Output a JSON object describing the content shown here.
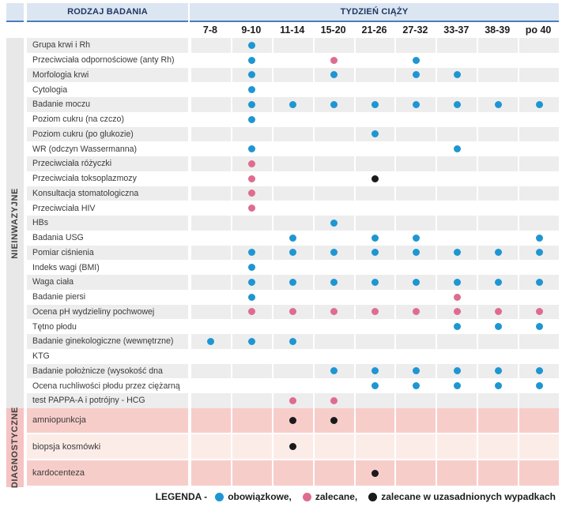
{
  "header": {
    "exam_col": "RODZAJ BADANIA",
    "weeks_col": "TYDZIEŃ CIĄŻY"
  },
  "chart_data": {
    "type": "table",
    "columns": [
      "7-8",
      "9-10",
      "11-14",
      "15-20",
      "21-26",
      "27-32",
      "33-37",
      "38-39",
      "po 40"
    ],
    "dot_types": {
      "blue": "obowiązkowe",
      "pink": "zalecane",
      "black": "zalecane w uzasadnionych wypadkach"
    },
    "sections": [
      {
        "label": "NIEINWAZYJNE",
        "style": "gray",
        "rows": [
          {
            "name": "Grupa krwi i Rh",
            "dots": {
              "1": "blue"
            }
          },
          {
            "name": "Przeciwciała odpornościowe (anty Rh)",
            "dots": {
              "1": "blue",
              "3": "pink",
              "5": "blue"
            }
          },
          {
            "name": "Morfologia krwi",
            "dots": {
              "1": "blue",
              "3": "blue",
              "5": "blue",
              "6": "blue"
            }
          },
          {
            "name": "Cytologia",
            "dots": {
              "1": "blue"
            }
          },
          {
            "name": "Badanie moczu",
            "dots": {
              "1": "blue",
              "2": "blue",
              "3": "blue",
              "4": "blue",
              "5": "blue",
              "6": "blue",
              "7": "blue",
              "8": "blue"
            }
          },
          {
            "name": "Poziom cukru (na czczo)",
            "dots": {
              "1": "blue"
            }
          },
          {
            "name": "Poziom cukru (po glukozie)",
            "dots": {
              "4": "blue"
            }
          },
          {
            "name": "WR (odczyn Wassermanna)",
            "dots": {
              "1": "blue",
              "6": "blue"
            }
          },
          {
            "name": "Przeciwciała różyczki",
            "dots": {
              "1": "pink"
            }
          },
          {
            "name": "Przeciwciała toksoplazmozy",
            "dots": {
              "1": "pink",
              "4": "black"
            }
          },
          {
            "name": "Konsultacja stomatologiczna",
            "dots": {
              "1": "pink"
            }
          },
          {
            "name": "Przeciwciała HIV",
            "dots": {
              "1": "pink"
            }
          },
          {
            "name": "HBs",
            "dots": {
              "3": "blue"
            }
          },
          {
            "name": "Badania USG",
            "dots": {
              "2": "blue",
              "4": "blue",
              "5": "blue",
              "8": "blue"
            }
          },
          {
            "name": "Pomiar ciśnienia",
            "dots": {
              "1": "blue",
              "2": "blue",
              "3": "blue",
              "4": "blue",
              "5": "blue",
              "6": "blue",
              "7": "blue",
              "8": "blue"
            }
          },
          {
            "name": "Indeks wagi (BMI)",
            "dots": {
              "1": "blue"
            }
          },
          {
            "name": "Waga ciała",
            "dots": {
              "1": "blue",
              "2": "blue",
              "3": "blue",
              "4": "blue",
              "5": "blue",
              "6": "blue",
              "7": "blue",
              "8": "blue"
            }
          },
          {
            "name": "Badanie piersi",
            "dots": {
              "1": "blue",
              "6": "pink"
            }
          },
          {
            "name": "Ocena pH wydzieliny pochwowej",
            "dots": {
              "1": "pink",
              "2": "pink",
              "3": "pink",
              "4": "pink",
              "5": "pink",
              "6": "pink",
              "7": "pink",
              "8": "pink"
            }
          },
          {
            "name": "Tętno płodu",
            "dots": {
              "6": "blue",
              "7": "blue",
              "8": "blue"
            }
          },
          {
            "name": "Badanie ginekologiczne (wewnętrzne)",
            "dots": {
              "0": "blue",
              "1": "blue",
              "2": "blue"
            }
          },
          {
            "name": "KTG",
            "dots": {}
          },
          {
            "name": "Badanie położnicze (wysokość dna",
            "dots": {
              "3": "blue",
              "4": "blue",
              "5": "blue",
              "6": "blue",
              "7": "blue",
              "8": "blue"
            }
          },
          {
            "name": "Ocena ruchliwości płodu przez ciężarną",
            "dots": {
              "4": "blue",
              "5": "blue",
              "6": "blue",
              "7": "blue",
              "8": "blue"
            }
          },
          {
            "name": "test PAPPA-A i potrójny - HCG",
            "dots": {
              "2": "pink",
              "3": "pink"
            }
          }
        ]
      },
      {
        "label": "DIAGNOSTYCZNE",
        "style": "pink",
        "rows": [
          {
            "name": "amniopunkcja",
            "dots": {
              "2": "black",
              "3": "black"
            }
          },
          {
            "name": "biopsja kosmówki",
            "dots": {
              "2": "black"
            }
          },
          {
            "name": "kardocenteza",
            "dots": {
              "4": "black"
            }
          }
        ]
      }
    ]
  },
  "legend": {
    "title": "LEGENDA -",
    "items": [
      {
        "dot": "blue",
        "label": "obowiązkowe,"
      },
      {
        "dot": "pink",
        "label": "zalecane,"
      },
      {
        "dot": "black",
        "label": "zalecane w uzasadnionych wypadkach"
      }
    ]
  },
  "colors": {
    "dot_blue": "#1e96d2",
    "dot_pink": "#df6c8e",
    "dot_black": "#1a1a1a",
    "header_bg": "#dce6f2",
    "header_border": "#4a7ebc",
    "stripe_gray": "#ededee",
    "strip_gray": "#e8e8e9",
    "strip_pink": "#f4c3c2",
    "diag_row_pink": "#f7cdca",
    "diag_row_light": "#fcece8"
  }
}
